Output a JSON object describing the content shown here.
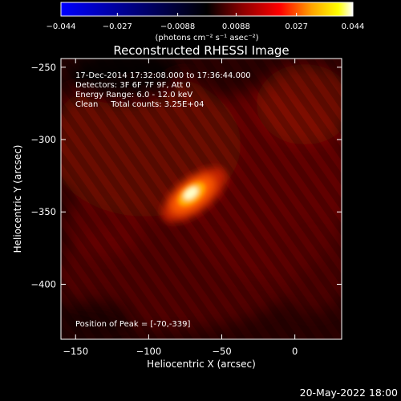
{
  "chart_data": {
    "type": "heatmap",
    "title": "Reconstructed RHESSI Image",
    "xlabel": "Heliocentric X (arcsec)",
    "ylabel": "Heliocentric Y (arcsec)",
    "xlim": [
      -160,
      32
    ],
    "ylim": [
      -438,
      -244
    ],
    "x_ticks": [
      {
        "value": -150,
        "label": "−150"
      },
      {
        "value": -100,
        "label": "−100"
      },
      {
        "value": -50,
        "label": "−50"
      },
      {
        "value": 0,
        "label": "0"
      }
    ],
    "y_ticks": [
      {
        "value": -250,
        "label": "−250"
      },
      {
        "value": -300,
        "label": "−300"
      },
      {
        "value": -350,
        "label": "−350"
      },
      {
        "value": -400,
        "label": "−400"
      }
    ],
    "peak": {
      "x": -70,
      "y": -339
    },
    "annotations": [
      "17-Dec-2014 17:32:08.000 to 17:36:44.000",
      "Detectors: 3F 6F 7F 9F, Att 0",
      "Energy Range: 6.0 - 12.0 keV",
      "Clean     Total counts: 3.25E+04",
      "Position of Peak = [-70,-339]"
    ],
    "colorbar": {
      "range": [
        -0.044,
        0.044
      ],
      "ticks": [
        {
          "value": -0.044,
          "label": "−0.044"
        },
        {
          "value": -0.027,
          "label": "−0.027"
        },
        {
          "value": -0.0088,
          "label": "−0.0088"
        },
        {
          "value": 0.0088,
          "label": "0.0088"
        },
        {
          "value": 0.027,
          "label": "0.027"
        },
        {
          "value": 0.044,
          "label": "0.044"
        }
      ],
      "label": "(photons cm⁻² s⁻¹ asec⁻²)",
      "colormap": [
        "#0000ff",
        "#000000",
        "#8b0000",
        "#ff0000",
        "#ffa500",
        "#ffff00",
        "#ffffff"
      ]
    },
    "grid": false
  },
  "footer": {
    "timestamp": "20-May-2022 18:00"
  }
}
